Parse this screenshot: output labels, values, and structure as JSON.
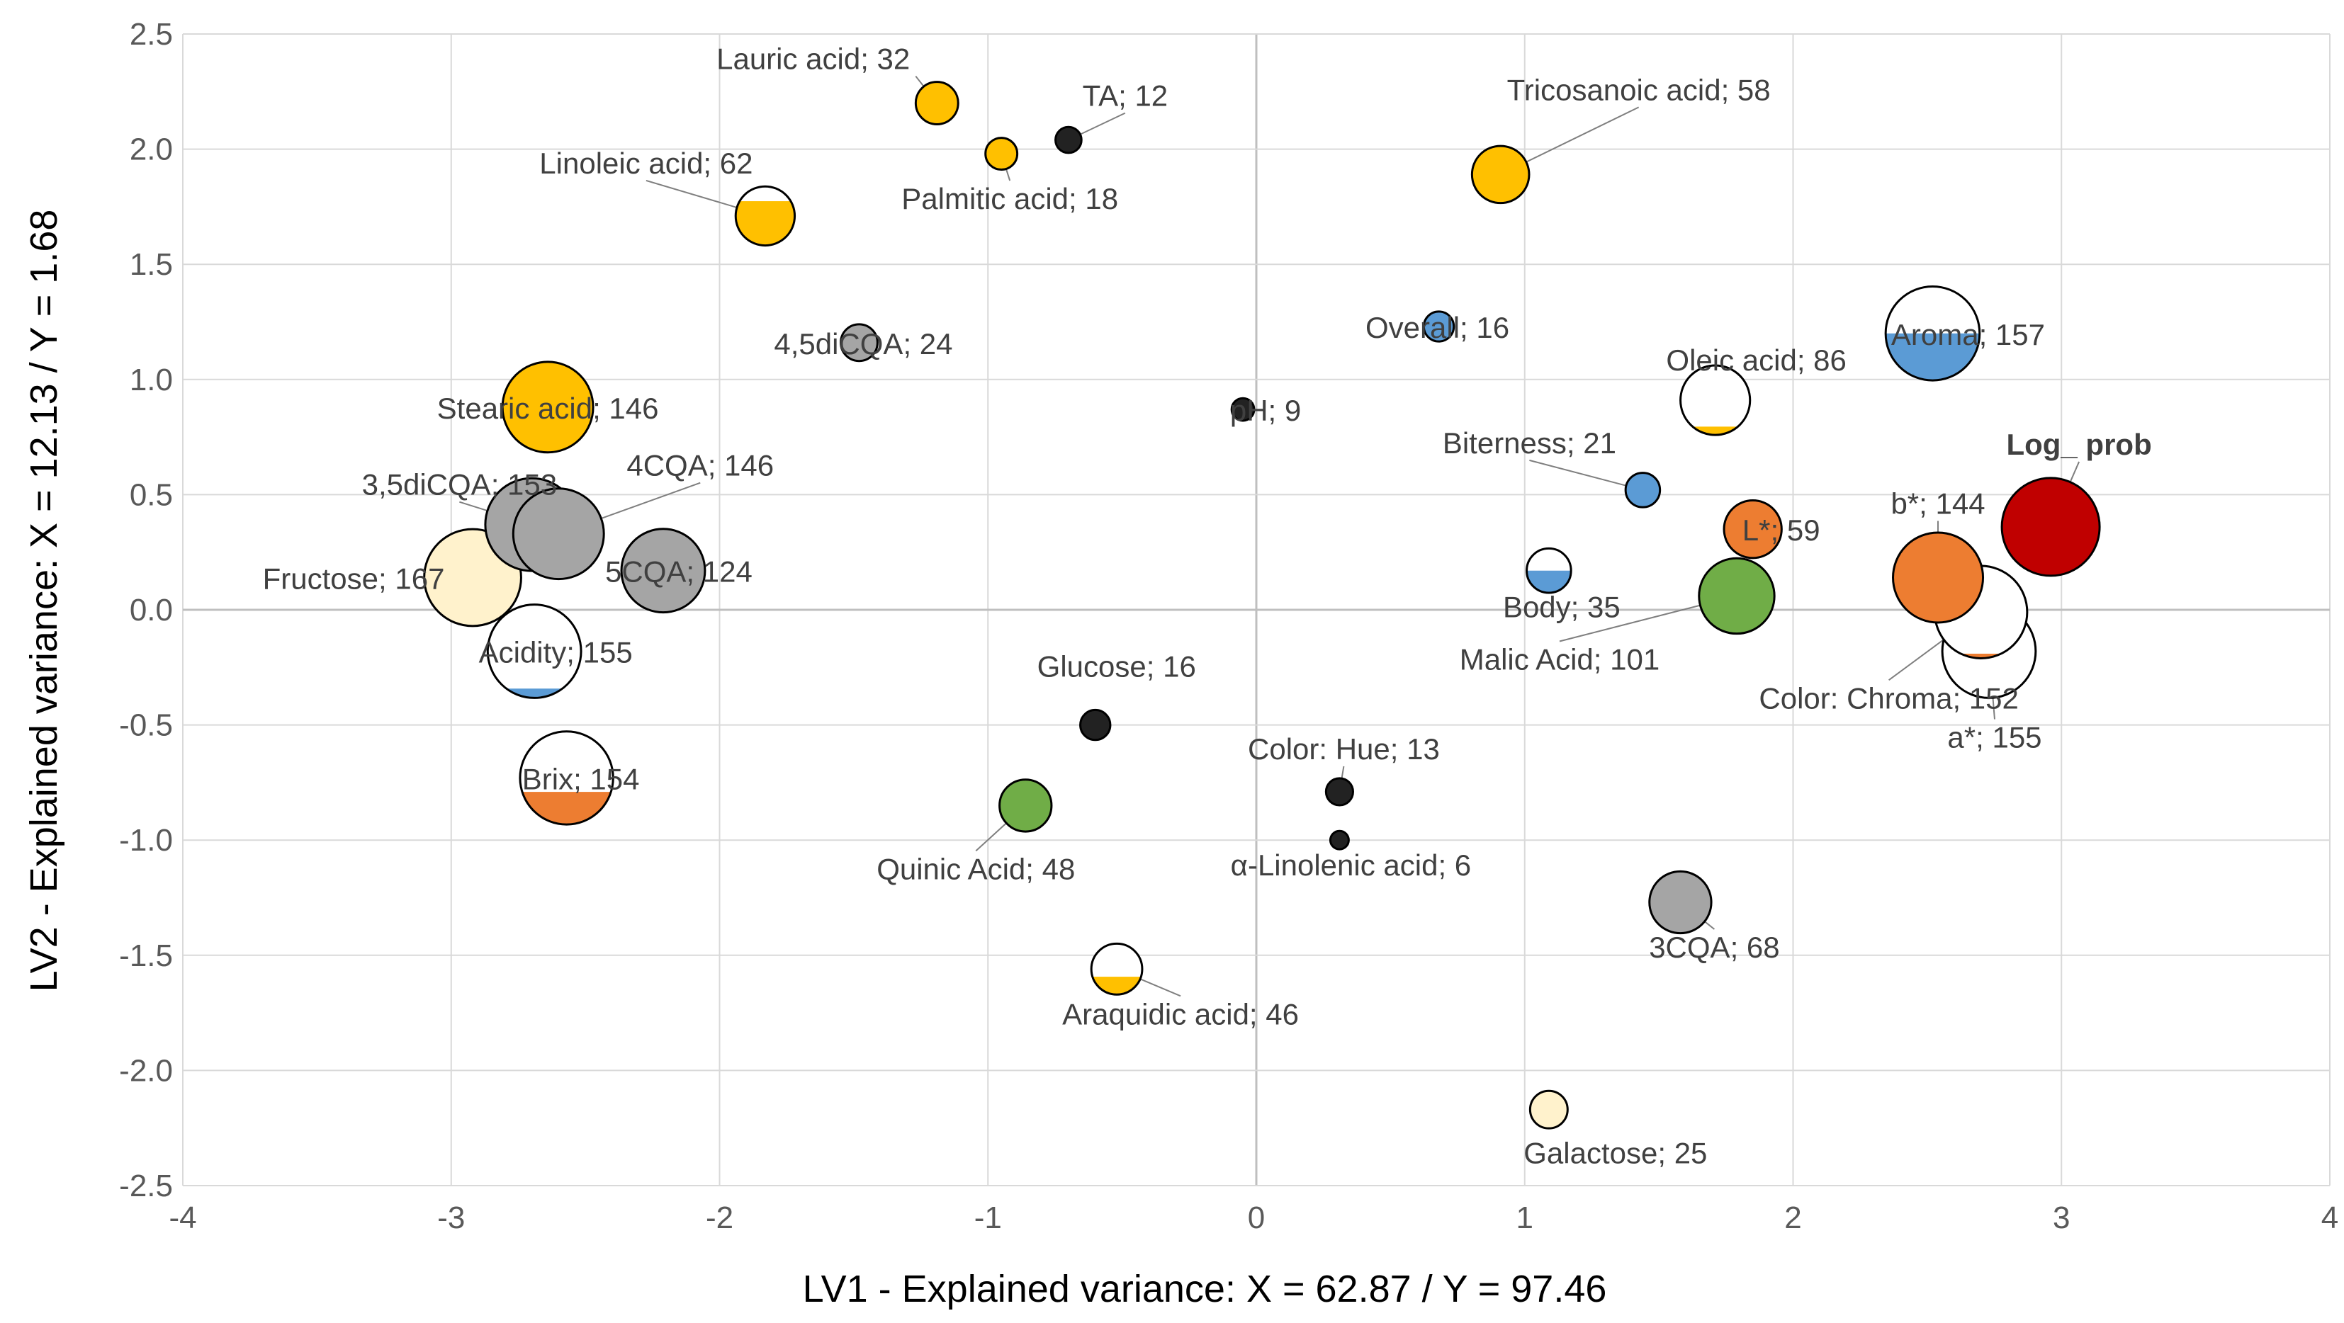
{
  "chart_data": {
    "type": "scatter",
    "subtype": "bubble",
    "xlabel": "LV1 - Explained variance: X =  62.87 /  Y =  97.46",
    "ylabel": "LV2 - Explained variance: X =  12.13 /  Y =  1.68",
    "xlim": [
      -4,
      4
    ],
    "ylim": [
      -2.5,
      2.5
    ],
    "xticks": [
      -4,
      -3,
      -2,
      -1,
      0,
      1,
      2,
      3,
      4
    ],
    "yticks": [
      2.5,
      2.0,
      1.5,
      1.0,
      0.5,
      0.0,
      -0.5,
      -1.0,
      -1.5,
      -2.0,
      -2.5
    ],
    "xtick_labels": [
      "-4",
      "-3",
      "-2",
      "-1",
      "0",
      "1",
      "2",
      "3",
      "4"
    ],
    "ytick_labels": [
      "2.5",
      "2.0",
      "1.5",
      "1.0",
      "0.5",
      "0.0",
      "-0.5",
      "-1.0",
      "-1.5",
      "-2.0",
      "-2.5"
    ],
    "grid": true,
    "colors": {
      "fatty_acid": "#ffc000",
      "sensory": "#5b9bd5",
      "chlorogenic": "#a5a5a5",
      "color": "#ed7d31",
      "organic_acid": "#70ad47",
      "sugar": "#fff2cc",
      "response": "#c00000",
      "white": "#ffffff",
      "dark": "#222222",
      "grid": "#d9d9d9",
      "zero_line": "#bfbfbf",
      "leader": "#7f7f7f"
    },
    "points": [
      {
        "label": "Lauric acid; 32",
        "x": -1.19,
        "y": 2.2,
        "size": 32,
        "color": "#ffc000",
        "fill_fraction": 1.0
      },
      {
        "label": "TA; 12",
        "x": -0.7,
        "y": 2.04,
        "size": 12,
        "color": "#222222",
        "fill_fraction": 1.0
      },
      {
        "label": "Palmitic acid; 18",
        "x": -0.95,
        "y": 1.98,
        "size": 18,
        "color": "#ffc000",
        "fill_fraction": 1.0
      },
      {
        "label": "Tricosanoic acid; 58",
        "x": 0.91,
        "y": 1.89,
        "size": 58,
        "color": "#ffc000",
        "fill_fraction": 1.0
      },
      {
        "label": "Linoleic acid; 62",
        "x": -1.83,
        "y": 1.71,
        "size": 62,
        "color": "#ffc000",
        "fill_fraction": 0.75
      },
      {
        "label": "4,5diCQA; 24",
        "x": -1.48,
        "y": 1.16,
        "size": 24,
        "color": "#a5a5a5",
        "fill_fraction": 1.0
      },
      {
        "label": "Overall; 16",
        "x": 0.68,
        "y": 1.23,
        "size": 16,
        "color": "#5b9bd5",
        "fill_fraction": 1.0
      },
      {
        "label": "Aroma; 157",
        "x": 2.52,
        "y": 1.2,
        "size": 157,
        "color": "#5b9bd5",
        "fill_fraction": 0.5
      },
      {
        "label": "Oleic acid; 86",
        "x": 1.71,
        "y": 0.91,
        "size": 86,
        "color": "#ffc000",
        "fill_fraction": 0.12
      },
      {
        "label": "pH; 9",
        "x": -0.05,
        "y": 0.87,
        "size": 9,
        "color": "#222222",
        "fill_fraction": 1.0
      },
      {
        "label": "Stearic acid; 146",
        "x": -2.64,
        "y": 0.88,
        "size": 146,
        "color": "#ffc000",
        "fill_fraction": 1.0
      },
      {
        "label": "Biterness; 21",
        "x": 1.44,
        "y": 0.52,
        "size": 21,
        "color": "#5b9bd5",
        "fill_fraction": 1.0
      },
      {
        "label": "Log_ prob",
        "x": 2.96,
        "y": 0.36,
        "size": 170,
        "color": "#c00000",
        "fill_fraction": 1.0,
        "bold": true
      },
      {
        "label": "4CQA; 146",
        "x": -2.6,
        "y": 0.33,
        "size": 146,
        "color": "#a5a5a5",
        "fill_fraction": 1.0
      },
      {
        "label": "3,5diCQA; 153",
        "x": -2.7,
        "y": 0.37,
        "size": 153,
        "color": "#a5a5a5",
        "fill_fraction": 1.0
      },
      {
        "label": "L*; 59",
        "x": 1.85,
        "y": 0.35,
        "size": 59,
        "color": "#ed7d31",
        "fill_fraction": 1.0
      },
      {
        "label": "b*; 144",
        "x": 2.54,
        "y": 0.14,
        "size": 144,
        "color": "#ed7d31",
        "fill_fraction": 1.0
      },
      {
        "label": "5CQA; 124",
        "x": -2.21,
        "y": 0.17,
        "size": 124,
        "color": "#a5a5a5",
        "fill_fraction": 1.0
      },
      {
        "label": "Fructose; 167",
        "x": -2.92,
        "y": 0.14,
        "size": 167,
        "color": "#fff2cc",
        "fill_fraction": 1.0
      },
      {
        "label": "Body; 35",
        "x": 1.09,
        "y": 0.17,
        "size": 35,
        "color": "#5b9bd5",
        "fill_fraction": 0.5
      },
      {
        "label": "Malic Acid; 101",
        "x": 1.79,
        "y": 0.06,
        "size": 101,
        "color": "#70ad47",
        "fill_fraction": 1.0
      },
      {
        "label": "Color: Chroma; 152",
        "x": 2.7,
        "y": -0.01,
        "size": 152,
        "color": "#ed7d31",
        "fill_fraction": 0.05
      },
      {
        "label": "a*; 155",
        "x": 2.73,
        "y": -0.18,
        "size": 155,
        "color": "#ed7d31",
        "fill_fraction": 0.0
      },
      {
        "label": "Acidity; 155",
        "x": -2.69,
        "y": -0.18,
        "size": 155,
        "color": "#5b9bd5",
        "fill_fraction": 0.1
      },
      {
        "label": "Glucose; 16",
        "x": -0.6,
        "y": -0.5,
        "size": 16,
        "color": "#222222",
        "fill_fraction": 1.0
      },
      {
        "label": "Brix; 154",
        "x": -2.57,
        "y": -0.73,
        "size": 154,
        "color": "#ed7d31",
        "fill_fraction": 0.35
      },
      {
        "label": "Color: Hue; 13",
        "x": 0.31,
        "y": -0.79,
        "size": 13,
        "color": "#222222",
        "fill_fraction": 1.0
      },
      {
        "label": "Quinic Acid; 48",
        "x": -0.86,
        "y": -0.85,
        "size": 48,
        "color": "#70ad47",
        "fill_fraction": 1.0
      },
      {
        "label": "α-Linolenic acid; 6",
        "x": 0.31,
        "y": -1.0,
        "size": 6,
        "color": "#222222",
        "fill_fraction": 1.0
      },
      {
        "label": "3CQA; 68",
        "x": 1.58,
        "y": -1.27,
        "size": 68,
        "color": "#a5a5a5",
        "fill_fraction": 1.0
      },
      {
        "label": "Araquidic acid; 46",
        "x": -0.52,
        "y": -1.56,
        "size": 46,
        "color": "#ffc000",
        "fill_fraction": 0.35
      },
      {
        "label": "Galactose; 25",
        "x": 1.09,
        "y": -2.17,
        "size": 25,
        "color": "#fff2cc",
        "fill_fraction": 1.0
      }
    ]
  }
}
